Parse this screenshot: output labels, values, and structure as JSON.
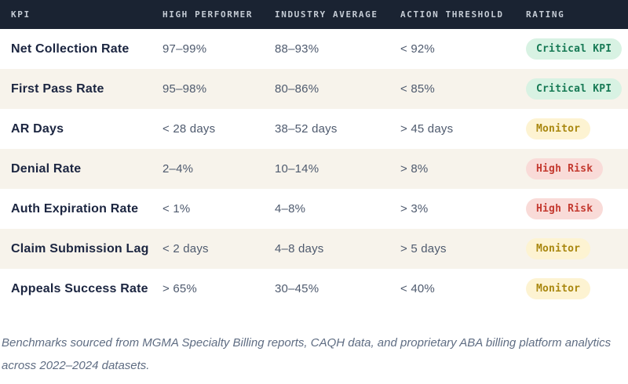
{
  "table": {
    "columns": [
      "KPI",
      "HIGH PERFORMER",
      "INDUSTRY AVERAGE",
      "ACTION THRESHOLD",
      "RATING"
    ],
    "rows": [
      {
        "kpi": "Net Collection Rate",
        "high_performer": "97–99%",
        "industry_average": "88–93%",
        "action_threshold": "< 92%",
        "rating": "Critical KPI",
        "rating_style": "critical"
      },
      {
        "kpi": "First Pass Rate",
        "high_performer": "95–98%",
        "industry_average": "80–86%",
        "action_threshold": "< 85%",
        "rating": "Critical KPI",
        "rating_style": "critical"
      },
      {
        "kpi": "AR Days",
        "high_performer": "< 28 days",
        "industry_average": "38–52 days",
        "action_threshold": "> 45 days",
        "rating": "Monitor",
        "rating_style": "monitor"
      },
      {
        "kpi": "Denial Rate",
        "high_performer": "2–4%",
        "industry_average": "10–14%",
        "action_threshold": "> 8%",
        "rating": "High Risk",
        "rating_style": "high-risk"
      },
      {
        "kpi": "Auth Expiration Rate",
        "high_performer": "< 1%",
        "industry_average": "4–8%",
        "action_threshold": "> 3%",
        "rating": "High Risk",
        "rating_style": "high-risk"
      },
      {
        "kpi": "Claim Submission Lag",
        "high_performer": "< 2 days",
        "industry_average": "4–8 days",
        "action_threshold": "> 5 days",
        "rating": "Monitor",
        "rating_style": "monitor"
      },
      {
        "kpi": "Appeals Success Rate",
        "high_performer": "> 65%",
        "industry_average": "30–45%",
        "action_threshold": "< 40%",
        "rating": "Monitor",
        "rating_style": "monitor"
      }
    ]
  },
  "footnote": "Benchmarks sourced from MGMA Specialty Billing reports, CAQH data, and proprietary ABA billing platform analytics across 2022–2024 datasets.",
  "colors": {
    "header_bg": "#1a2332",
    "header_text": "#c5ccd5",
    "row_alt_bg": "#f7f3eb",
    "kpi_text": "#1b2540",
    "value_text": "#4e5a6e",
    "badge_critical_bg": "#d8f2e3",
    "badge_critical_text": "#177a55",
    "badge_monitor_bg": "#fdf3d2",
    "badge_monitor_text": "#a9870f",
    "badge_high_risk_bg": "#f9dbd8",
    "badge_high_risk_text": "#c43a30",
    "footnote_text": "#5f6d83"
  }
}
